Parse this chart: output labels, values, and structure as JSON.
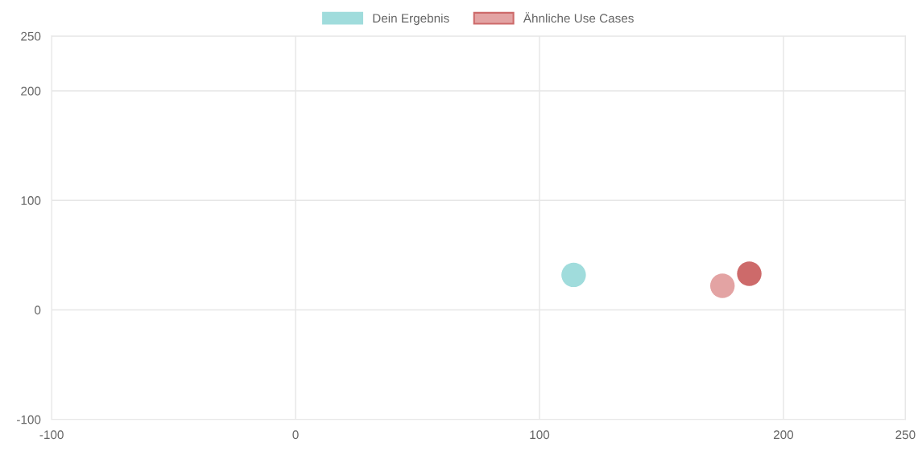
{
  "chart_data": {
    "type": "scatter",
    "series": [
      {
        "name": "Dein Ergebnis",
        "color": "#a0dcdc",
        "x": [
          114
        ],
        "values": [
          32
        ]
      },
      {
        "name": "Ähnliche Use Cases",
        "color": "#e3a3a3",
        "colors": [
          "#e3a3a3",
          "#cd6a6a"
        ],
        "x": [
          175,
          186
        ],
        "values": [
          22,
          33
        ]
      }
    ],
    "xlim": [
      -100,
      250
    ],
    "xticks": [
      -100,
      0,
      100,
      200,
      250
    ],
    "ylim": [
      -100,
      250
    ],
    "yticks": [
      -100,
      100,
      0,
      200,
      250
    ],
    "grid": true,
    "legend": "top",
    "marker": "circle"
  }
}
